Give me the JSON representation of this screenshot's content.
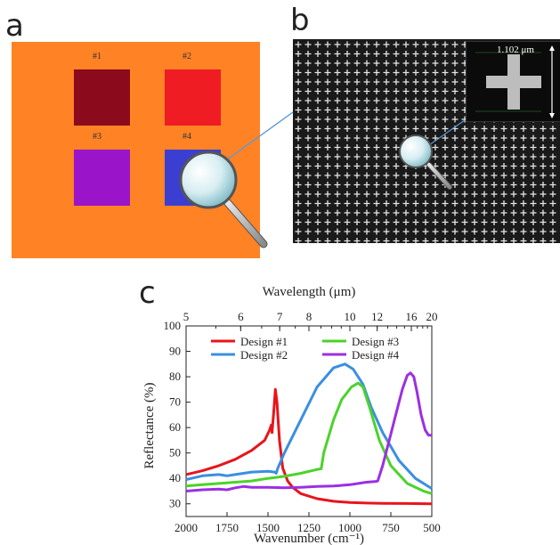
{
  "panels": {
    "a": {
      "letter": "a",
      "background": "#ff8225",
      "squares": [
        {
          "label": "#1",
          "color": "#8b0a1c"
        },
        {
          "label": "#2",
          "color": "#ef1c24"
        },
        {
          "label": "#3",
          "color": "#9a14c9"
        },
        {
          "label": "#4",
          "color": "#3b3fd1"
        }
      ]
    },
    "b": {
      "letter": "b",
      "scale_label": "1.102 μm"
    },
    "c": {
      "letter": "c"
    }
  },
  "chart_data": {
    "type": "line",
    "xlabel": "Wavenumber (cm⁻¹)",
    "x_top_label": "Wavelength (μm)",
    "ylabel": "Reflectance (%)",
    "xlim": [
      2000,
      500
    ],
    "ylim": [
      25,
      100
    ],
    "x_ticks": [
      2000,
      1750,
      1500,
      1250,
      1000,
      750,
      500
    ],
    "y_ticks": [
      30,
      40,
      50,
      60,
      70,
      80,
      90,
      100
    ],
    "top_ticks": [
      5,
      6,
      7,
      8,
      10,
      12,
      16,
      20
    ],
    "legend_position": "top",
    "series": [
      {
        "name": "Design #1",
        "color": "#e8141b",
        "points": [
          [
            2000,
            41.5
          ],
          [
            1900,
            43
          ],
          [
            1800,
            45
          ],
          [
            1700,
            47.5
          ],
          [
            1600,
            51
          ],
          [
            1520,
            55
          ],
          [
            1490,
            59
          ],
          [
            1480,
            61
          ],
          [
            1475,
            58
          ],
          [
            1465,
            66
          ],
          [
            1455,
            75
          ],
          [
            1445,
            70
          ],
          [
            1430,
            55
          ],
          [
            1410,
            44
          ],
          [
            1380,
            39
          ],
          [
            1350,
            36.5
          ],
          [
            1300,
            34
          ],
          [
            1200,
            32
          ],
          [
            1100,
            31
          ],
          [
            1000,
            30.5
          ],
          [
            900,
            30.3
          ],
          [
            800,
            30.2
          ],
          [
            650,
            30.1
          ],
          [
            500,
            30
          ]
        ]
      },
      {
        "name": "Design #2",
        "color": "#3a8fe0",
        "points": [
          [
            2000,
            39.5
          ],
          [
            1900,
            41
          ],
          [
            1800,
            41.5
          ],
          [
            1750,
            41
          ],
          [
            1700,
            41.5
          ],
          [
            1600,
            42.5
          ],
          [
            1500,
            42.8
          ],
          [
            1460,
            42.5
          ],
          [
            1450,
            42
          ],
          [
            1440,
            44
          ],
          [
            1400,
            50
          ],
          [
            1300,
            63
          ],
          [
            1200,
            76
          ],
          [
            1100,
            83.5
          ],
          [
            1030,
            85
          ],
          [
            980,
            83
          ],
          [
            920,
            77
          ],
          [
            870,
            68
          ],
          [
            800,
            58
          ],
          [
            700,
            47
          ],
          [
            600,
            40
          ],
          [
            500,
            36
          ]
        ]
      },
      {
        "name": "Design #3",
        "color": "#4bd32a",
        "points": [
          [
            2000,
            37
          ],
          [
            1900,
            37.5
          ],
          [
            1800,
            38
          ],
          [
            1700,
            38.5
          ],
          [
            1600,
            39
          ],
          [
            1500,
            40
          ],
          [
            1400,
            40.8
          ],
          [
            1300,
            42
          ],
          [
            1200,
            43.5
          ],
          [
            1175,
            43.8
          ],
          [
            1160,
            50
          ],
          [
            1100,
            63
          ],
          [
            1050,
            71
          ],
          [
            990,
            76
          ],
          [
            950,
            77.5
          ],
          [
            920,
            76
          ],
          [
            880,
            68
          ],
          [
            820,
            55
          ],
          [
            750,
            45
          ],
          [
            650,
            38
          ],
          [
            550,
            35
          ],
          [
            500,
            34
          ]
        ]
      },
      {
        "name": "Design #4",
        "color": "#9b2fe3",
        "points": [
          [
            2000,
            35
          ],
          [
            1900,
            35.5
          ],
          [
            1800,
            35.8
          ],
          [
            1750,
            35.5
          ],
          [
            1700,
            36.3
          ],
          [
            1650,
            36.8
          ],
          [
            1600,
            36.5
          ],
          [
            1500,
            36.5
          ],
          [
            1400,
            36.3
          ],
          [
            1300,
            36.5
          ],
          [
            1200,
            36.8
          ],
          [
            1100,
            37
          ],
          [
            1000,
            37.5
          ],
          [
            900,
            38.5
          ],
          [
            840,
            38.8
          ],
          [
            830,
            39
          ],
          [
            800,
            45
          ],
          [
            760,
            55
          ],
          [
            720,
            65
          ],
          [
            680,
            75
          ],
          [
            650,
            80.5
          ],
          [
            630,
            81.5
          ],
          [
            610,
            80
          ],
          [
            590,
            74
          ],
          [
            565,
            65
          ],
          [
            540,
            59
          ],
          [
            520,
            57
          ],
          [
            500,
            57
          ]
        ]
      }
    ]
  }
}
